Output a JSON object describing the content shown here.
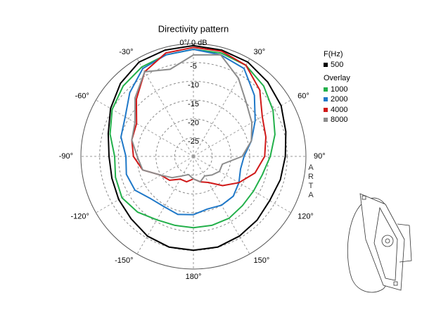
{
  "chart_data": {
    "type": "polar",
    "title": "Directivity pattern",
    "x": [
      -180,
      -165,
      -150,
      -135,
      -120,
      -105,
      -90,
      -75,
      -60,
      -45,
      -30,
      -15,
      0,
      15,
      30,
      45,
      60,
      75,
      90,
      105,
      120,
      135,
      150,
      165
    ],
    "xticks": [
      {
        "value": 0,
        "label": "0°/ 0 dB"
      },
      {
        "value": 30,
        "label": "30°"
      },
      {
        "value": 60,
        "label": "60°"
      },
      {
        "value": 90,
        "label": "90°"
      },
      {
        "value": 120,
        "label": "120°"
      },
      {
        "value": 150,
        "label": "150°"
      },
      {
        "value": 180,
        "label": "180°"
      },
      {
        "value": -150,
        "label": "-150°"
      },
      {
        "value": -120,
        "label": "-120°"
      },
      {
        "value": -90,
        "label": "-90°"
      },
      {
        "value": -60,
        "label": "-60°"
      },
      {
        "value": -30,
        "label": "-30°"
      }
    ],
    "ylim": [
      -30,
      0
    ],
    "yticks": [
      -25,
      -20,
      -15,
      -10,
      -5
    ],
    "legend_title": "F(Hz)",
    "overlay_label": "Overlay",
    "watermark": "ARTA",
    "series": [
      {
        "name": "500",
        "color": "#000000",
        "values": [
          -5,
          -5,
          -5.5,
          -6.5,
          -7,
          -7.5,
          -7.5,
          -6.5,
          -4.5,
          -2.5,
          -1,
          -0.7,
          -0.5,
          -0.7,
          -1,
          -2,
          -3,
          -4.5,
          -5.5,
          -6,
          -6.5,
          -6,
          -5.5,
          -5
        ]
      },
      {
        "name": "1000",
        "color": "#22b04a",
        "values": [
          -11,
          -11,
          -10.5,
          -9,
          -8,
          -8.5,
          -9,
          -7,
          -5,
          -3.5,
          -2.5,
          -2,
          -1.5,
          -1.5,
          -2,
          -3.5,
          -5.5,
          -7.5,
          -9.5,
          -11,
          -11.5,
          -11.5,
          -11,
          -11
        ]
      },
      {
        "name": "2000",
        "color": "#1f78c8",
        "values": [
          -14.5,
          -14,
          -14.5,
          -14,
          -12,
          -11.5,
          -12,
          -10,
          -9,
          -6,
          -3,
          -2,
          -1.5,
          -2,
          -3,
          -7,
          -11,
          -14,
          -16.5,
          -17,
          -16,
          -15,
          -15,
          -15.5
        ]
      },
      {
        "name": "4000",
        "color": "#d01818",
        "values": [
          -24,
          -23,
          -23,
          -21,
          -20,
          -16,
          -14,
          -13,
          -12.5,
          -8.5,
          -4,
          -1.5,
          -1,
          -1,
          -2,
          -5,
          -8.8,
          -10,
          -11,
          -13,
          -16,
          -19,
          -22,
          -23
        ]
      },
      {
        "name": "8000",
        "color": "#8c8c8c",
        "values": [
          -24,
          -25,
          -24,
          -22,
          -20,
          -16,
          -15,
          -13,
          -12,
          -8,
          -4,
          -6,
          -3,
          -2,
          -6,
          -10,
          -12,
          -14,
          -17,
          -22,
          -22,
          -23,
          -24,
          -23
        ]
      }
    ]
  }
}
